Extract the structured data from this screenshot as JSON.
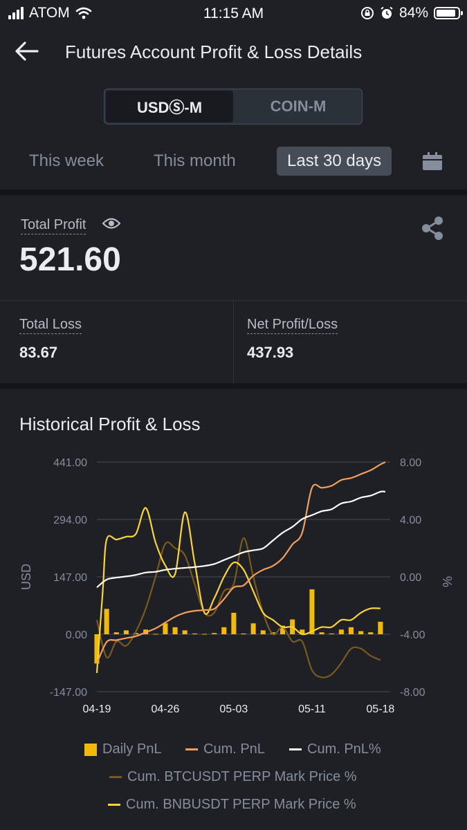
{
  "status_bar": {
    "carrier": "ATOM",
    "time": "11:15 AM",
    "battery": "84%"
  },
  "header": {
    "title": "Futures Account Profit & Loss Details"
  },
  "segment": {
    "options": [
      "USDⓈ-M",
      "COIN-M"
    ],
    "active": 0
  },
  "periods": {
    "items": [
      "This week",
      "This month",
      "Last 30 days"
    ],
    "active": 2
  },
  "summary": {
    "total_profit_label": "Total Profit",
    "total_profit_value": "521.60",
    "total_loss_label": "Total Loss",
    "total_loss_value": "83.67",
    "net_label": "Net Profit/Loss",
    "net_value": "437.93"
  },
  "chart_section": {
    "title": "Historical Profit & Loss"
  },
  "colors": {
    "daily": "#f0b90b",
    "cum_pnl": "#f5a05a",
    "cum_pct": "#ffffff",
    "btc": "#7a5a1c",
    "bnb": "#fcd535"
  },
  "chart_data": {
    "type": "bar",
    "x_ticks": [
      "04-19",
      "04-26",
      "05-03",
      "05-11",
      "05-18"
    ],
    "ylabel": "USD",
    "ylabel_right": "%",
    "ylim": [
      -147,
      441
    ],
    "y_ticks": [
      "441.00",
      "294.00",
      "147.00",
      "0.00",
      "-147.00"
    ],
    "ylim_right": [
      -8,
      8
    ],
    "y_ticks_right": [
      "8.00",
      "4.00",
      "0.00",
      "-4.00",
      "-8.00"
    ],
    "grid": true,
    "legend_placement": "bottom",
    "x_range": [
      0,
      30
    ],
    "x_tick_positions": [
      0,
      7,
      14,
      22,
      29
    ],
    "series": [
      {
        "name": "Daily PnL",
        "type": "bar",
        "axis": "left",
        "x": [
          0,
          1,
          2,
          3,
          4,
          5,
          6,
          7,
          8,
          9,
          10,
          11,
          12,
          13,
          14,
          15,
          16,
          17,
          18,
          19,
          20,
          21,
          22,
          23,
          24,
          25,
          26,
          27,
          28,
          29
        ],
        "values": [
          -75,
          65,
          5,
          10,
          3,
          12,
          1,
          28,
          18,
          10,
          2,
          1,
          3,
          18,
          55,
          2,
          28,
          10,
          5,
          22,
          38,
          12,
          115,
          5,
          2,
          12,
          18,
          8,
          5,
          32
        ]
      },
      {
        "name": "Cum. PnL",
        "type": "line",
        "axis": "left",
        "x": [
          0,
          1,
          2,
          3,
          4,
          5,
          6,
          7,
          8,
          9,
          10,
          11,
          12,
          13,
          14,
          15,
          16,
          17,
          18,
          19,
          20,
          21,
          22,
          23,
          24,
          25,
          26,
          27,
          28,
          29,
          29.5
        ],
        "values": [
          -75,
          -20,
          -15,
          -10,
          -5,
          5,
          15,
          30,
          45,
          55,
          60,
          62,
          65,
          90,
          120,
          125,
          150,
          165,
          175,
          195,
          230,
          260,
          375,
          375,
          380,
          395,
          400,
          410,
          420,
          435,
          441
        ]
      },
      {
        "name": "Cum. PnL%",
        "type": "line",
        "axis": "left",
        "x": [
          0,
          1,
          2,
          3,
          4,
          5,
          6,
          7,
          8,
          9,
          10,
          11,
          12,
          13,
          14,
          15,
          16,
          17,
          18,
          19,
          20,
          21,
          22,
          23,
          24,
          25,
          26,
          27,
          28,
          29,
          29.5
        ],
        "values": [
          120,
          140,
          145,
          148,
          152,
          158,
          160,
          165,
          168,
          170,
          172,
          175,
          180,
          190,
          200,
          210,
          215,
          220,
          240,
          260,
          275,
          295,
          305,
          315,
          320,
          335,
          340,
          350,
          355,
          365,
          365
        ]
      },
      {
        "name": "Cum. BTCUSDT PERP Mark Price %",
        "type": "line",
        "axis": "right",
        "x": [
          0,
          1,
          2,
          3,
          4,
          5,
          6,
          7,
          8,
          9,
          10,
          11,
          12,
          13,
          14,
          15,
          16,
          17,
          18,
          19,
          20,
          21,
          22,
          23,
          24,
          25,
          26,
          27,
          28,
          29
        ],
        "values": [
          -3.0,
          -5.6,
          -4.5,
          -4.8,
          -3.8,
          -2.2,
          0.0,
          2.3,
          2.0,
          1.5,
          -0.5,
          -2.5,
          -2.5,
          -1.0,
          -0.5,
          2.7,
          0.0,
          -2.5,
          -4.0,
          -3.5,
          -4.5,
          -4.5,
          -6.5,
          -7.0,
          -6.8,
          -6.0,
          -5.0,
          -5.0,
          -5.5,
          -5.8
        ]
      },
      {
        "name": "Cum. BNBUSDT PERP Mark Price %",
        "type": "line",
        "axis": "right",
        "x": [
          0,
          0.6,
          1,
          2,
          3,
          4,
          5,
          6,
          7,
          8,
          9,
          10,
          11,
          12,
          13,
          14,
          15,
          16,
          17,
          18,
          19,
          20,
          21,
          22,
          23,
          24,
          25,
          26,
          27,
          28,
          29
        ],
        "values": [
          -6.7,
          -1.0,
          2.6,
          2.6,
          2.8,
          3.0,
          4.8,
          2.4,
          0.8,
          0.2,
          4.5,
          1.0,
          -2.5,
          -1.5,
          0.0,
          1.0,
          0.5,
          -1.0,
          -2.5,
          -3.0,
          -3.5,
          -3.5,
          -4.0,
          -3.8,
          -3.5,
          -3.5,
          -3.0,
          -3.0,
          -2.5,
          -2.2,
          -2.2
        ]
      }
    ]
  }
}
